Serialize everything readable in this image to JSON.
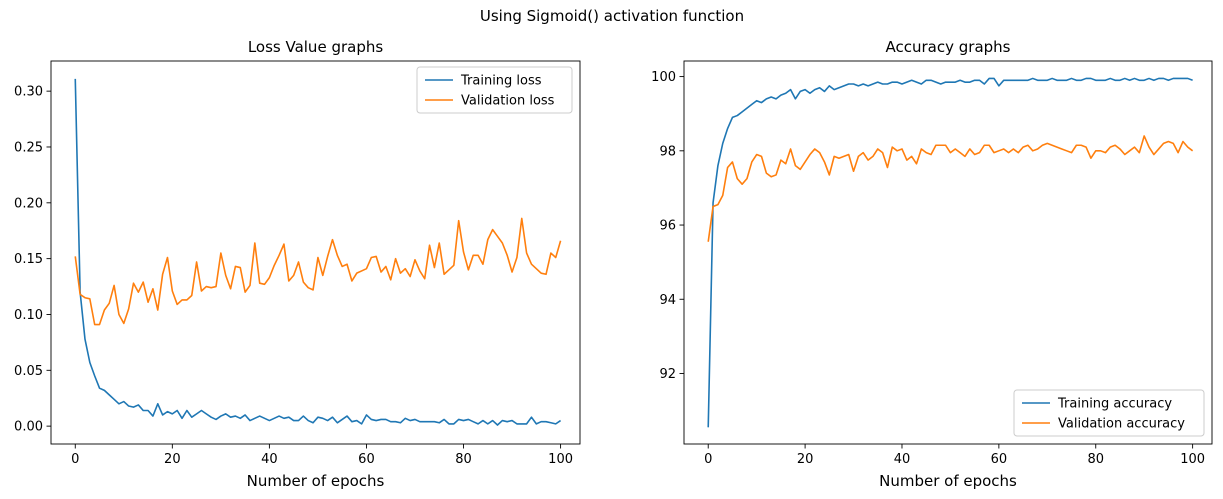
{
  "figure": {
    "title": "Using Sigmoid() activation function"
  },
  "chart_data": [
    {
      "type": "line",
      "title": "Loss Value graphs",
      "xlabel": "Number of epochs",
      "ylabel": "",
      "xlim": [
        -5,
        104
      ],
      "ylim": [
        -0.016,
        0.327
      ],
      "xticks": [
        0,
        20,
        40,
        60,
        80,
        100
      ],
      "yticks": [
        0.0,
        0.05,
        0.1,
        0.15,
        0.2,
        0.25,
        0.3
      ],
      "ytick_labels": [
        "0.00",
        "0.05",
        "0.10",
        "0.15",
        "0.20",
        "0.25",
        "0.30"
      ],
      "grid": false,
      "legend_position": "top-right",
      "series": [
        {
          "name": "Training loss",
          "color": "#1f77b4",
          "values": [
            0.311,
            0.12,
            0.078,
            0.057,
            0.045,
            0.034,
            0.032,
            0.028,
            0.024,
            0.02,
            0.022,
            0.018,
            0.017,
            0.019,
            0.014,
            0.014,
            0.009,
            0.02,
            0.01,
            0.013,
            0.011,
            0.014,
            0.007,
            0.014,
            0.008,
            0.011,
            0.014,
            0.011,
            0.008,
            0.006,
            0.009,
            0.011,
            0.008,
            0.009,
            0.007,
            0.01,
            0.005,
            0.007,
            0.009,
            0.007,
            0.005,
            0.007,
            0.009,
            0.007,
            0.008,
            0.005,
            0.005,
            0.009,
            0.005,
            0.003,
            0.008,
            0.007,
            0.005,
            0.008,
            0.003,
            0.006,
            0.009,
            0.004,
            0.005,
            0.002,
            0.01,
            0.006,
            0.005,
            0.006,
            0.006,
            0.004,
            0.004,
            0.003,
            0.007,
            0.005,
            0.006,
            0.004,
            0.004,
            0.004,
            0.004,
            0.003,
            0.006,
            0.002,
            0.002,
            0.006,
            0.005,
            0.006,
            0.004,
            0.002,
            0.005,
            0.002,
            0.005,
            0.001,
            0.005,
            0.004,
            0.005,
            0.002,
            0.002,
            0.002,
            0.008,
            0.002,
            0.004,
            0.004,
            0.003,
            0.002,
            0.005
          ]
        },
        {
          "name": "Validation loss",
          "color": "#ff7f0e",
          "values": [
            0.152,
            0.118,
            0.115,
            0.114,
            0.091,
            0.091,
            0.104,
            0.11,
            0.126,
            0.1,
            0.092,
            0.105,
            0.128,
            0.12,
            0.129,
            0.111,
            0.123,
            0.104,
            0.136,
            0.151,
            0.121,
            0.109,
            0.113,
            0.113,
            0.117,
            0.147,
            0.121,
            0.125,
            0.124,
            0.125,
            0.155,
            0.135,
            0.123,
            0.143,
            0.142,
            0.12,
            0.126,
            0.164,
            0.128,
            0.127,
            0.133,
            0.144,
            0.153,
            0.163,
            0.13,
            0.135,
            0.147,
            0.129,
            0.124,
            0.122,
            0.151,
            0.135,
            0.152,
            0.167,
            0.153,
            0.143,
            0.145,
            0.13,
            0.137,
            0.139,
            0.141,
            0.151,
            0.152,
            0.138,
            0.143,
            0.131,
            0.15,
            0.137,
            0.141,
            0.134,
            0.149,
            0.139,
            0.132,
            0.162,
            0.142,
            0.164,
            0.136,
            0.14,
            0.144,
            0.184,
            0.156,
            0.14,
            0.153,
            0.153,
            0.145,
            0.167,
            0.176,
            0.17,
            0.164,
            0.153,
            0.138,
            0.151,
            0.186,
            0.155,
            0.145,
            0.141,
            0.137,
            0.136,
            0.155,
            0.151,
            0.166
          ]
        }
      ]
    },
    {
      "type": "line",
      "title": "Accuracy graphs",
      "xlabel": "Number of epochs",
      "ylabel": "",
      "xlim": [
        -5,
        104
      ],
      "ylim": [
        90.1,
        100.42
      ],
      "xticks": [
        0,
        20,
        40,
        60,
        80,
        100
      ],
      "yticks": [
        92,
        94,
        96,
        98,
        100
      ],
      "ytick_labels": [
        "92",
        "94",
        "96",
        "98",
        "100"
      ],
      "grid": false,
      "legend_position": "bottom-right",
      "series": [
        {
          "name": "Training accuracy",
          "color": "#1f77b4",
          "values": [
            90.55,
            96.6,
            97.6,
            98.2,
            98.6,
            98.9,
            98.95,
            99.05,
            99.15,
            99.25,
            99.35,
            99.3,
            99.4,
            99.45,
            99.4,
            99.5,
            99.55,
            99.65,
            99.4,
            99.6,
            99.65,
            99.55,
            99.65,
            99.7,
            99.6,
            99.75,
            99.65,
            99.7,
            99.75,
            99.8,
            99.8,
            99.75,
            99.8,
            99.75,
            99.8,
            99.85,
            99.8,
            99.8,
            99.85,
            99.85,
            99.8,
            99.85,
            99.9,
            99.85,
            99.8,
            99.9,
            99.9,
            99.85,
            99.8,
            99.85,
            99.85,
            99.85,
            99.9,
            99.85,
            99.85,
            99.9,
            99.9,
            99.8,
            99.95,
            99.95,
            99.75,
            99.9,
            99.9,
            99.9,
            99.9,
            99.9,
            99.9,
            99.95,
            99.9,
            99.9,
            99.9,
            99.95,
            99.9,
            99.9,
            99.9,
            99.95,
            99.9,
            99.9,
            99.95,
            99.95,
            99.9,
            99.9,
            99.9,
            99.95,
            99.9,
            99.9,
            99.95,
            99.9,
            99.95,
            99.9,
            99.9,
            99.95,
            99.9,
            99.95,
            99.95,
            99.9,
            99.95,
            99.95,
            99.95,
            99.95,
            99.9
          ]
        },
        {
          "name": "Validation accuracy",
          "color": "#ff7f0e",
          "values": [
            95.55,
            96.5,
            96.55,
            96.8,
            97.55,
            97.7,
            97.25,
            97.1,
            97.25,
            97.7,
            97.9,
            97.85,
            97.4,
            97.3,
            97.35,
            97.75,
            97.65,
            98.05,
            97.6,
            97.5,
            97.7,
            97.9,
            98.05,
            97.95,
            97.7,
            97.35,
            97.85,
            97.8,
            97.85,
            97.9,
            97.45,
            97.85,
            97.95,
            97.75,
            97.85,
            98.05,
            97.95,
            97.55,
            98.1,
            98.0,
            98.05,
            97.75,
            97.85,
            97.65,
            98.05,
            97.95,
            97.9,
            98.15,
            98.15,
            98.15,
            97.95,
            98.05,
            97.95,
            97.85,
            98.05,
            97.9,
            97.95,
            98.15,
            98.15,
            97.95,
            98.0,
            98.05,
            97.95,
            98.05,
            97.95,
            98.1,
            98.15,
            98.0,
            98.05,
            98.15,
            98.2,
            98.15,
            98.1,
            98.05,
            98.0,
            97.95,
            98.15,
            98.15,
            98.1,
            97.8,
            98.0,
            98.0,
            97.95,
            98.1,
            98.15,
            98.05,
            97.9,
            98.0,
            98.1,
            97.95,
            98.4,
            98.1,
            97.9,
            98.05,
            98.2,
            98.25,
            98.2,
            97.95,
            98.25,
            98.1,
            98.0
          ]
        }
      ]
    }
  ]
}
